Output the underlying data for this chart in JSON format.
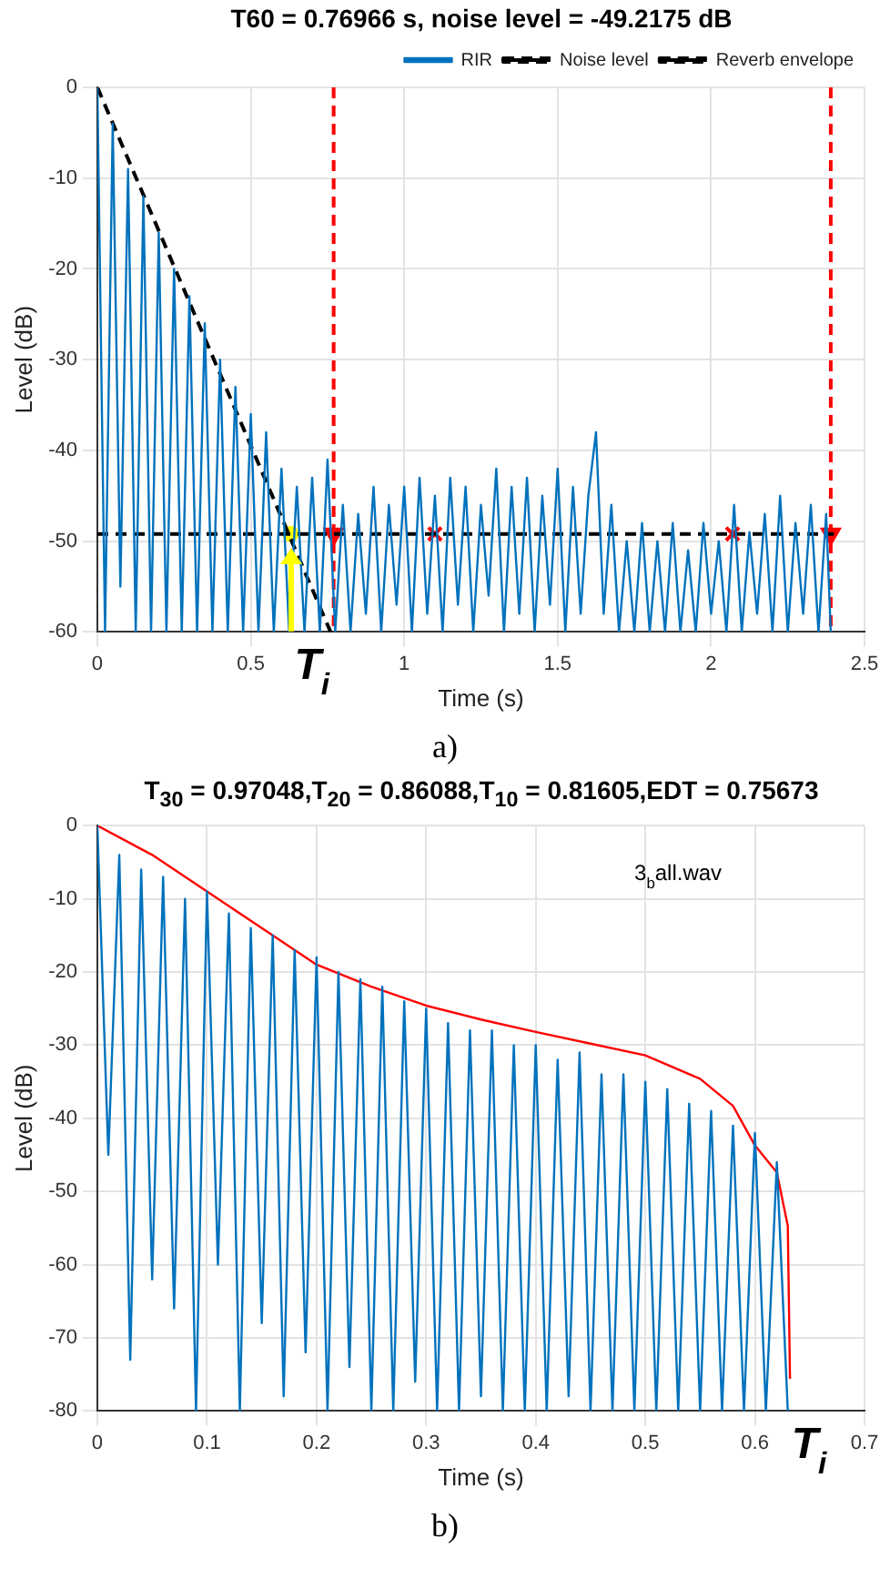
{
  "chart_data": [
    {
      "type": "line",
      "title": "T60 = 0.76966 s, noise level = -49.2175 dB",
      "xlabel": "Time (s)",
      "ylabel": "Level (dB)",
      "xlim": [
        0,
        2.5
      ],
      "xticks": [
        0,
        0.5,
        1,
        1.5,
        2,
        2.5
      ],
      "ylim": [
        -60,
        0
      ],
      "yticks": [
        -60,
        -50,
        -40,
        -30,
        -20,
        -10,
        0
      ],
      "grid": true,
      "legend": "top right",
      "series": [
        {
          "name": "RIR",
          "type": "line",
          "color": "#0072bd",
          "x": [
            0,
            0.025,
            0.05,
            0.075,
            0.1,
            0.125,
            0.15,
            0.175,
            0.2,
            0.225,
            0.25,
            0.275,
            0.3,
            0.325,
            0.35,
            0.375,
            0.4,
            0.425,
            0.45,
            0.475,
            0.5,
            0.525,
            0.55,
            0.575,
            0.6,
            0.625,
            0.65,
            0.675,
            0.7,
            0.725,
            0.75,
            0.775,
            0.8,
            0.825,
            0.85,
            0.875,
            0.9,
            0.925,
            0.95,
            0.975,
            1,
            1.025,
            1.05,
            1.075,
            1.1,
            1.125,
            1.15,
            1.175,
            1.2,
            1.225,
            1.25,
            1.275,
            1.3,
            1.325,
            1.35,
            1.375,
            1.4,
            1.425,
            1.45,
            1.475,
            1.5,
            1.525,
            1.55,
            1.575,
            1.6,
            1.625,
            1.65,
            1.675,
            1.7,
            1.725,
            1.75,
            1.775,
            1.8,
            1.825,
            1.85,
            1.875,
            1.9,
            1.925,
            1.95,
            1.975,
            2,
            2.025,
            2.05,
            2.075,
            2.1,
            2.125,
            2.15,
            2.175,
            2.2,
            2.225,
            2.25,
            2.275,
            2.3,
            2.325,
            2.35,
            2.375,
            2.39
          ],
          "values": [
            0,
            -60,
            -4,
            -55,
            -9,
            -60,
            -12,
            -60,
            -16,
            -60,
            -20,
            -60,
            -23,
            -60,
            -26,
            -60,
            -30,
            -60,
            -33,
            -60,
            -36,
            -60,
            -38,
            -60,
            -42,
            -60,
            -44,
            -60,
            -43,
            -60,
            -41,
            -60,
            -46,
            -60,
            -47,
            -58,
            -44,
            -60,
            -46,
            -57,
            -44,
            -60,
            -43,
            -58,
            -45,
            -60,
            -43,
            -57,
            -44,
            -60,
            -46,
            -56,
            -42,
            -60,
            -44,
            -58,
            -43,
            -60,
            -45,
            -57,
            -42,
            -60,
            -44,
            -58,
            -45,
            -38,
            -58,
            -46,
            -60,
            -50,
            -60,
            -48,
            -60,
            -50,
            -60,
            -48,
            -60,
            -51,
            -60,
            -48,
            -58,
            -50,
            -60,
            -46,
            -60,
            -49,
            -58,
            -47,
            -60,
            -45,
            -60,
            -48,
            -58,
            -46,
            -60,
            -47,
            -60
          ]
        },
        {
          "name": "Noise level",
          "type": "line",
          "color": "#000000",
          "line_style": "dashed",
          "x": [
            0,
            2.4
          ],
          "values": [
            -49.2,
            -49.2
          ]
        },
        {
          "name": "Reverb envelope",
          "type": "line",
          "color": "#000000",
          "line_style": "dashed",
          "x": [
            0,
            0.76
          ],
          "values": [
            0,
            -60
          ]
        },
        {
          "type": "scatter",
          "color": "#ff0000",
          "marker": "triangle",
          "x": [
            0.77,
            2.39
          ],
          "values": [
            -49.2,
            -49.2
          ]
        },
        {
          "type": "scatter",
          "color": "#ff0000",
          "marker": "cross",
          "x": [
            1.1,
            2.07
          ],
          "values": [
            -49.2,
            -49.2
          ]
        },
        {
          "type": "scatter",
          "color": "#ffff00",
          "marker": "circle",
          "x": [
            0.63
          ],
          "values": [
            -49.2
          ]
        }
      ],
      "ref_lines": [
        {
          "axis": "x",
          "value": 0.77,
          "color": "#ff0000",
          "line_style": "dashed"
        },
        {
          "axis": "x",
          "value": 2.39,
          "color": "#ff0000",
          "line_style": "dashed"
        }
      ],
      "annotations": [
        {
          "text": "T$_{i}$",
          "x": 0.63,
          "y": -60
        },
        "a)"
      ]
    },
    {
      "type": "line",
      "title": "T$_{30}$ = 0.97048,T$_{20}$ = 0.86088,T$_{10}$ = 0.81605,EDT = 0.75673",
      "xlabel": "Time (s)",
      "ylabel": "Level (dB)",
      "xlim": [
        0,
        0.7
      ],
      "xticks": [
        0,
        0.1,
        0.2,
        0.3,
        0.4,
        0.5,
        0.6,
        0.7
      ],
      "ylim": [
        -80,
        0
      ],
      "yticks": [
        -80,
        -70,
        -60,
        -50,
        -40,
        -30,
        -20,
        -10,
        0
      ],
      "grid": true,
      "series": [
        {
          "type": "line",
          "color": "#0072bd",
          "x": [
            0,
            0.01,
            0.02,
            0.03,
            0.04,
            0.05,
            0.06,
            0.07,
            0.08,
            0.09,
            0.1,
            0.11,
            0.12,
            0.13,
            0.14,
            0.15,
            0.16,
            0.17,
            0.18,
            0.19,
            0.2,
            0.21,
            0.22,
            0.23,
            0.24,
            0.25,
            0.26,
            0.27,
            0.28,
            0.29,
            0.3,
            0.31,
            0.32,
            0.33,
            0.34,
            0.35,
            0.36,
            0.37,
            0.38,
            0.39,
            0.4,
            0.41,
            0.42,
            0.43,
            0.44,
            0.45,
            0.46,
            0.47,
            0.48,
            0.49,
            0.5,
            0.51,
            0.52,
            0.53,
            0.54,
            0.55,
            0.56,
            0.57,
            0.58,
            0.59,
            0.6,
            0.61,
            0.62,
            0.63
          ],
          "values": [
            0,
            -45,
            -4,
            -73,
            -6,
            -62,
            -7,
            -66,
            -10,
            -80,
            -9,
            -60,
            -12,
            -80,
            -14,
            -68,
            -15,
            -78,
            -17,
            -72,
            -18,
            -80,
            -20,
            -74,
            -21,
            -80,
            -22,
            -80,
            -24,
            -76,
            -25,
            -80,
            -27,
            -80,
            -28,
            -78,
            -28,
            -80,
            -30,
            -80,
            -30,
            -80,
            -32,
            -78,
            -31,
            -80,
            -34,
            -80,
            -34,
            -80,
            -35,
            -80,
            -36,
            -80,
            -38,
            -80,
            -39,
            -80,
            -41,
            -80,
            -42,
            -80,
            -46,
            -80
          ]
        },
        {
          "type": "line",
          "color": "#ff0000",
          "x": [
            0,
            0.05,
            0.1,
            0.15,
            0.2,
            0.25,
            0.3,
            0.35,
            0.4,
            0.45,
            0.5,
            0.55,
            0.58,
            0.6,
            0.62,
            0.63,
            0.632
          ],
          "values": [
            0,
            -4,
            -9,
            -14,
            -19,
            -22,
            -24.6,
            -26.5,
            -28.2,
            -29.8,
            -31.4,
            -34.6,
            -38.3,
            -43.7,
            -47.4,
            -54.7,
            -75.6
          ]
        }
      ],
      "annotations": [
        "3$_{b}$all.wav",
        {
          "text": "T$_{i}$",
          "x": 0.63,
          "y": -80
        },
        "b)"
      ]
    }
  ]
}
